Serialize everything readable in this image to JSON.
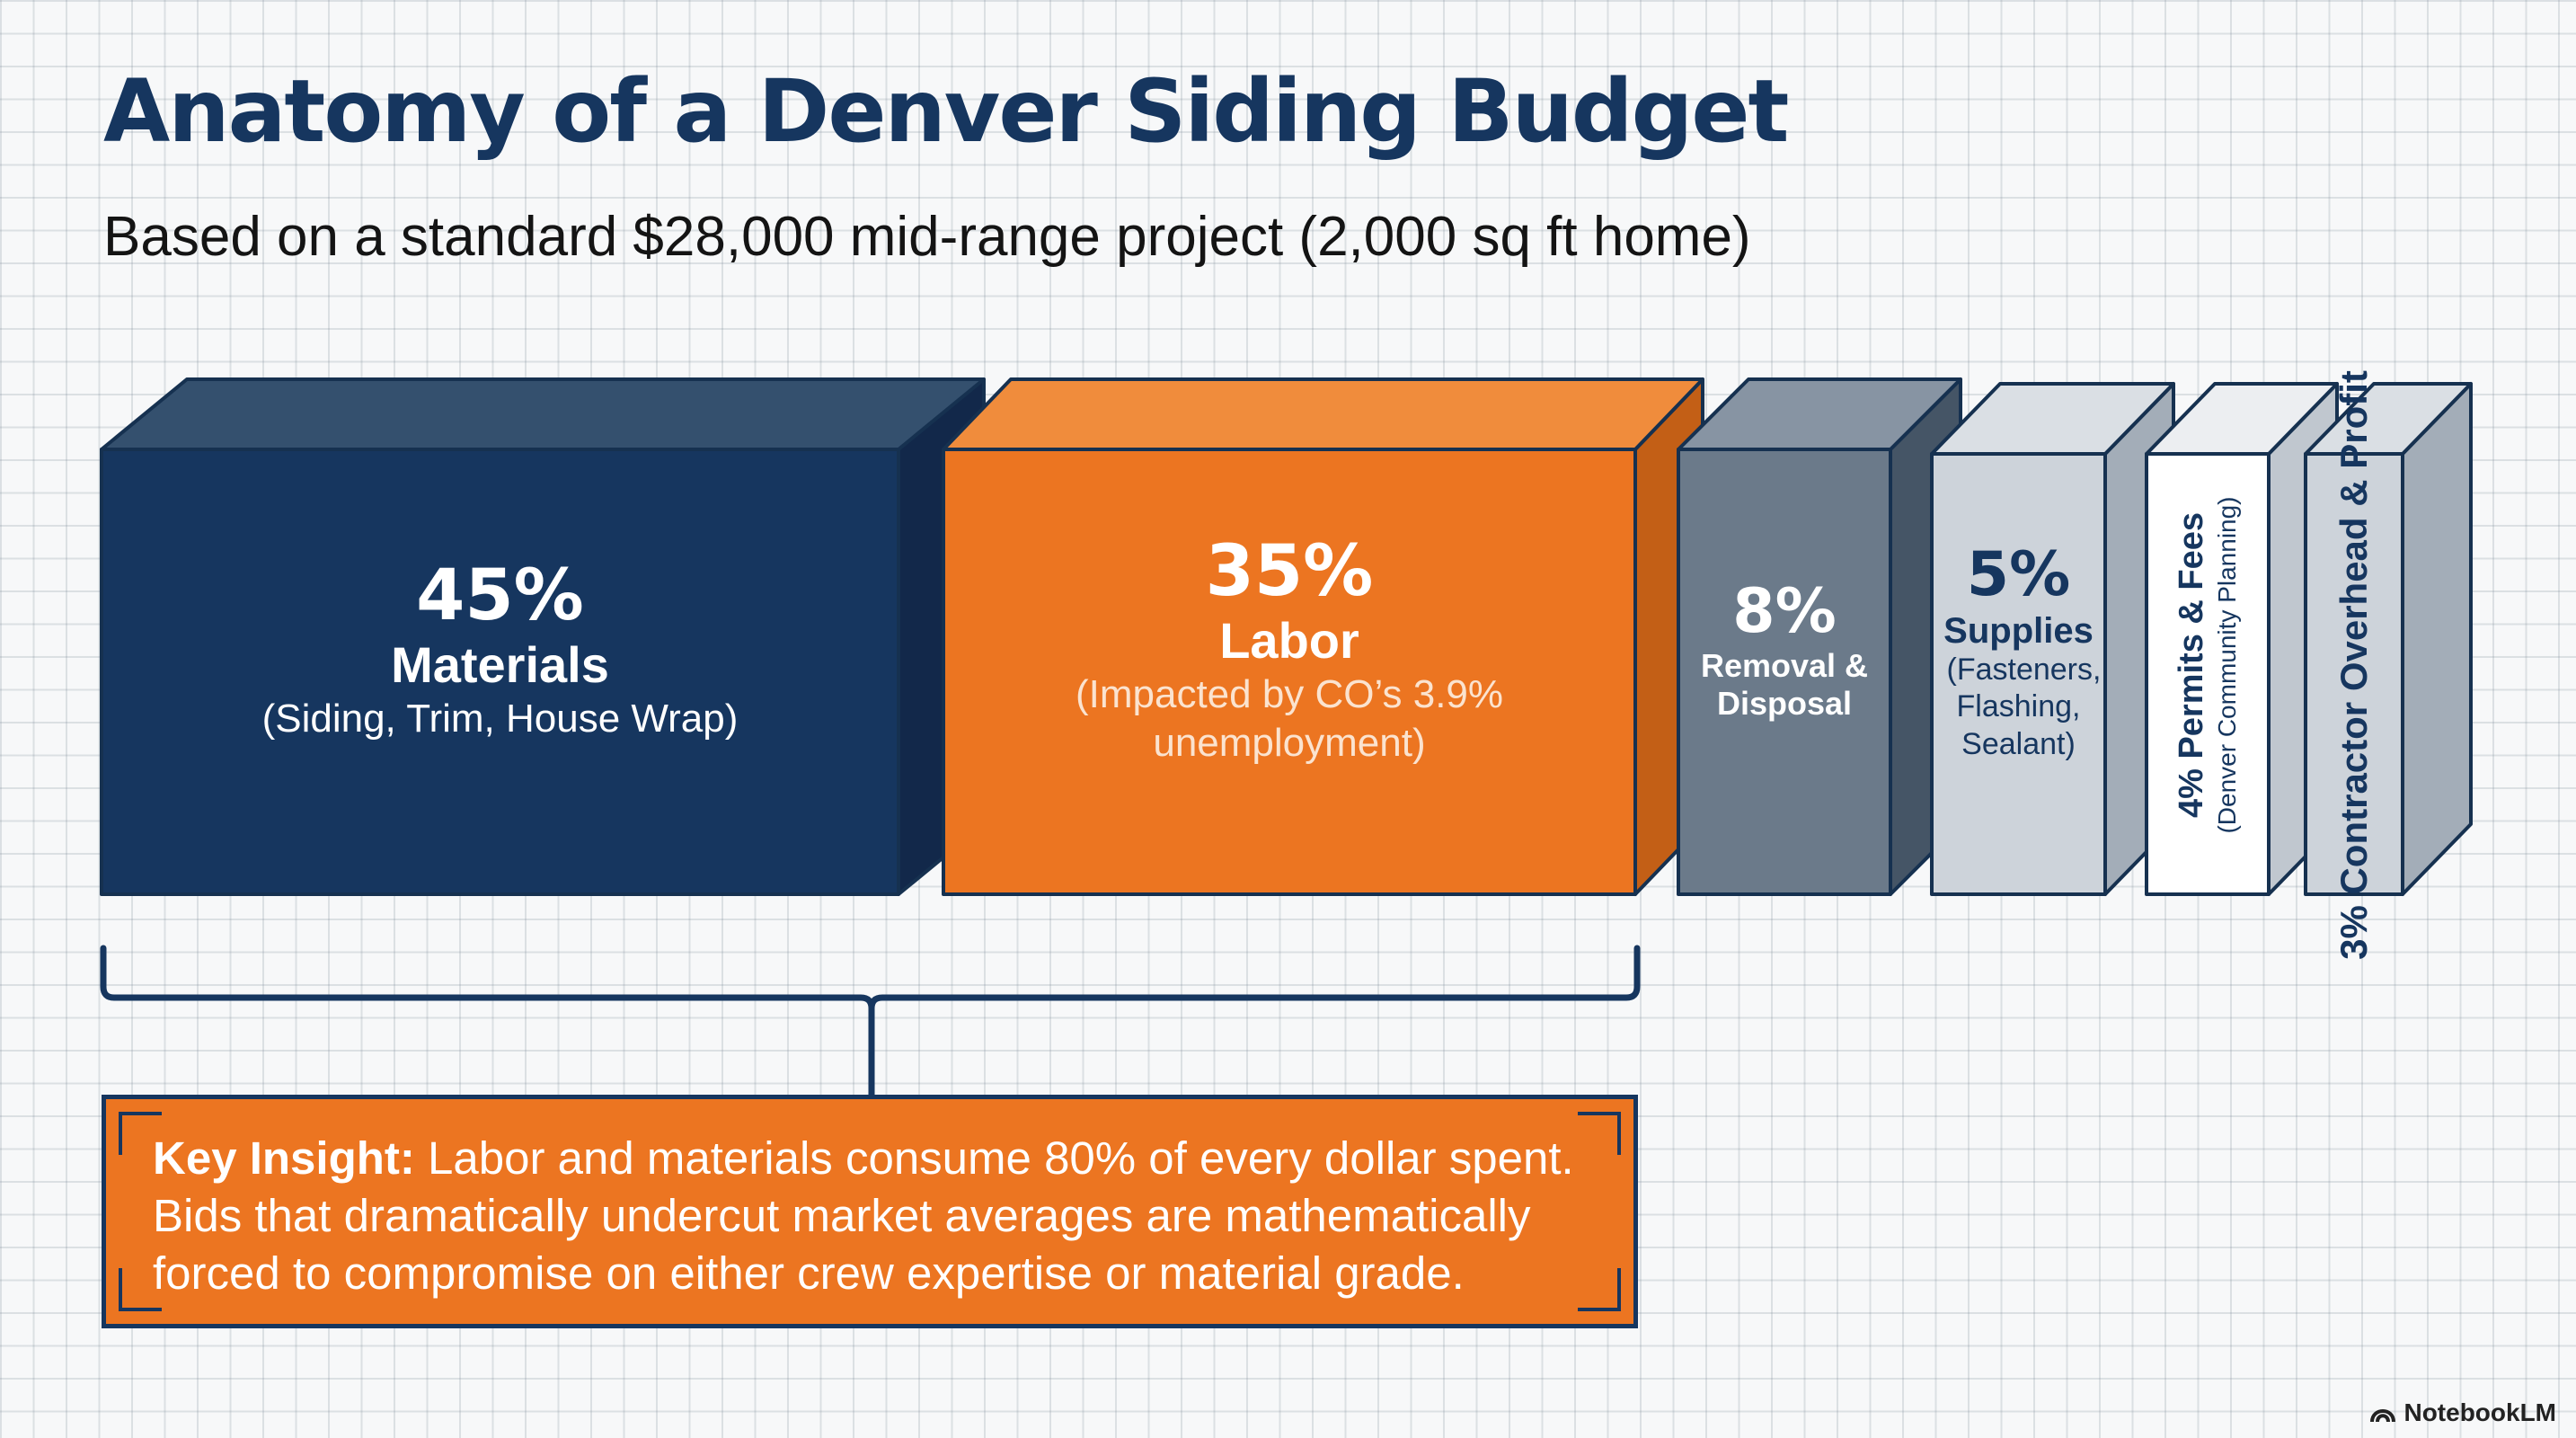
{
  "title": "Anatomy of a Denver Siding Budget",
  "subtitle": "Based on a standard $28,000 mid-range project (2,000 sq ft home)",
  "colors": {
    "navy": "#16365f",
    "orange": "#ec7521",
    "slate": "#6b7a8a",
    "light_gray": "#cdd3da",
    "white": "#ffffff",
    "grid_background": "#f7f8f9"
  },
  "segments": [
    {
      "id": "materials",
      "percent_value": 45,
      "percent": "45%",
      "name": "Materials",
      "detail": "(Siding, Trim, House Wrap)",
      "color": "navy"
    },
    {
      "id": "labor",
      "percent_value": 35,
      "percent": "35%",
      "name": "Labor",
      "detail": "(Impacted by CO’s 3.9% unemployment)",
      "color": "orange"
    },
    {
      "id": "removal",
      "percent_value": 8,
      "percent": "8%",
      "name": "Removal & Disposal",
      "detail": "",
      "color": "slate"
    },
    {
      "id": "supplies",
      "percent_value": 5,
      "percent": "5%",
      "name": "Supplies",
      "detail": "(Fasteners, Flashing, Sealant)",
      "color": "light_gray"
    },
    {
      "id": "permits",
      "percent_value": 4,
      "percent": "4%",
      "name": "Permits & Fees",
      "detail": "(Denver Community Planning)",
      "color": "white"
    },
    {
      "id": "overhead",
      "percent_value": 3,
      "percent": "3%",
      "name": "Contractor Overhead & Profit",
      "detail": "",
      "color": "light_gray"
    }
  ],
  "insight": {
    "heading": "Key Insight:",
    "text": "Labor and materials consume 80% of every dollar spent. Bids that dramatically undercut market averages are mathematically forced to compromise on either crew expertise or material grade."
  },
  "branding": {
    "logo_text": "NotebookLM",
    "icon": "notebooklm-logo-icon"
  }
}
